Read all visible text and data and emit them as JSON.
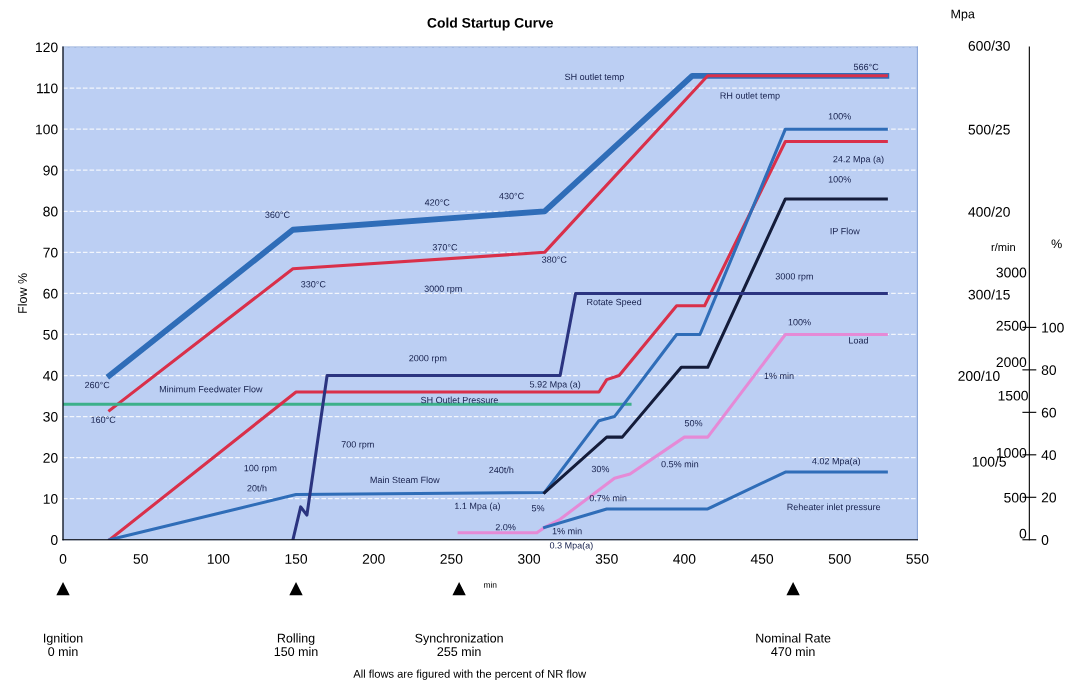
{
  "chart_data": {
    "type": "line",
    "title": "Cold Startup Curve",
    "xlabel": "min",
    "ylabel": "Flow %",
    "y2label": "%",
    "xlim": [
      0,
      550
    ],
    "xticks": [
      0,
      50,
      100,
      150,
      200,
      250,
      300,
      350,
      400,
      450,
      500,
      550
    ],
    "ylim": [
      0,
      120
    ],
    "yticks": [
      0,
      10,
      20,
      30,
      40,
      50,
      60,
      70,
      80,
      90,
      100,
      110,
      120
    ],
    "y2lim": [
      0,
      232
    ],
    "y2ticks": [
      0,
      20,
      40,
      60,
      80,
      100
    ],
    "grid": "y",
    "line_style": "solid",
    "marker": "none",
    "series": [
      {
        "color": "#2f6db8",
        "x": [
          30,
          148,
          310,
          405,
          530
        ],
        "values": [
          40,
          75.5,
          80,
          113,
          113
        ]
      },
      {
        "color": "#d9304a",
        "x": [
          30,
          148,
          310,
          415,
          530
        ],
        "values": [
          31.5,
          66,
          70,
          113,
          113
        ]
      },
      {
        "color": "#3cb08a",
        "x": [
          0,
          365
        ],
        "values": [
          33,
          33
        ]
      },
      {
        "color": "#d9304a",
        "x": [
          30,
          150,
          345,
          350,
          358,
          395,
          413,
          465,
          530
        ],
        "values": [
          0,
          36,
          36,
          39,
          40,
          57,
          57,
          97,
          97
        ]
      },
      {
        "color": "#2f6db8",
        "x": [
          30,
          150,
          310,
          345,
          355,
          395,
          410,
          465,
          530
        ],
        "values": [
          0,
          11,
          11.5,
          29,
          30,
          50,
          50,
          100,
          100
        ]
      },
      {
        "color": "#141c3a",
        "x": [
          310,
          350,
          360,
          398,
          415,
          465,
          530
        ],
        "values": [
          11.5,
          25,
          25,
          42,
          42,
          83,
          83
        ]
      },
      {
        "color": "#2b3480",
        "x": [
          148,
          153,
          157,
          170,
          320,
          330,
          530
        ],
        "values": [
          0,
          8,
          6,
          40,
          40,
          60,
          60
        ]
      },
      {
        "color": "#e58ad6",
        "x": [
          255,
          305,
          310,
          320,
          355,
          365,
          400,
          415,
          465,
          530
        ],
        "values": [
          1.7,
          1.7,
          3,
          5,
          15,
          16,
          25,
          25,
          50,
          50
        ]
      },
      {
        "color": "#2f6db8",
        "x": [
          310,
          350,
          415,
          465,
          530
        ],
        "values": [
          3,
          7.5,
          7.5,
          16.5,
          16.5
        ]
      }
    ],
    "annotations": [
      "360°C",
      "420°C",
      "430°C",
      "370°C",
      "330°C",
      "380°C",
      "SH outlet temp",
      "RH outlet temp",
      "566°C",
      "100%",
      "24.2 Mpa (a)",
      "100%",
      "IP Flow",
      "3000 rpm",
      "3000 rpm",
      "Rotate Speed",
      "100%",
      "Load",
      "1% min",
      "50%",
      "0.5% min",
      "30%",
      "0.7% min",
      "4.02 Mpa(a)",
      "Reheater inlet pressure",
      "5.92 Mpa (a)",
      "2000 rpm",
      "260°C",
      "Minimum Feedwater Flow",
      "160°C",
      "SH Outlet Pressure",
      "700 rpm",
      "100 rpm",
      "20t/h",
      "Main Steam Flow",
      "240t/h",
      "1.1 Mpa (a)",
      "2.0%",
      "5%",
      "1% min",
      "0.3 Mpa(a)",
      "Ignition\n0 min",
      "Rolling\n150 min",
      "Synchronization\n255 min",
      "Nominal Rate\n470 min",
      "Mpa",
      "600/30",
      "500/25",
      "400/20",
      "300/15",
      "200/10",
      "100/5",
      "r/min",
      "3000",
      "2500",
      "2000",
      "1500",
      "1000",
      "500",
      "0",
      "All flows are figured with the percent of NR flow"
    ]
  }
}
